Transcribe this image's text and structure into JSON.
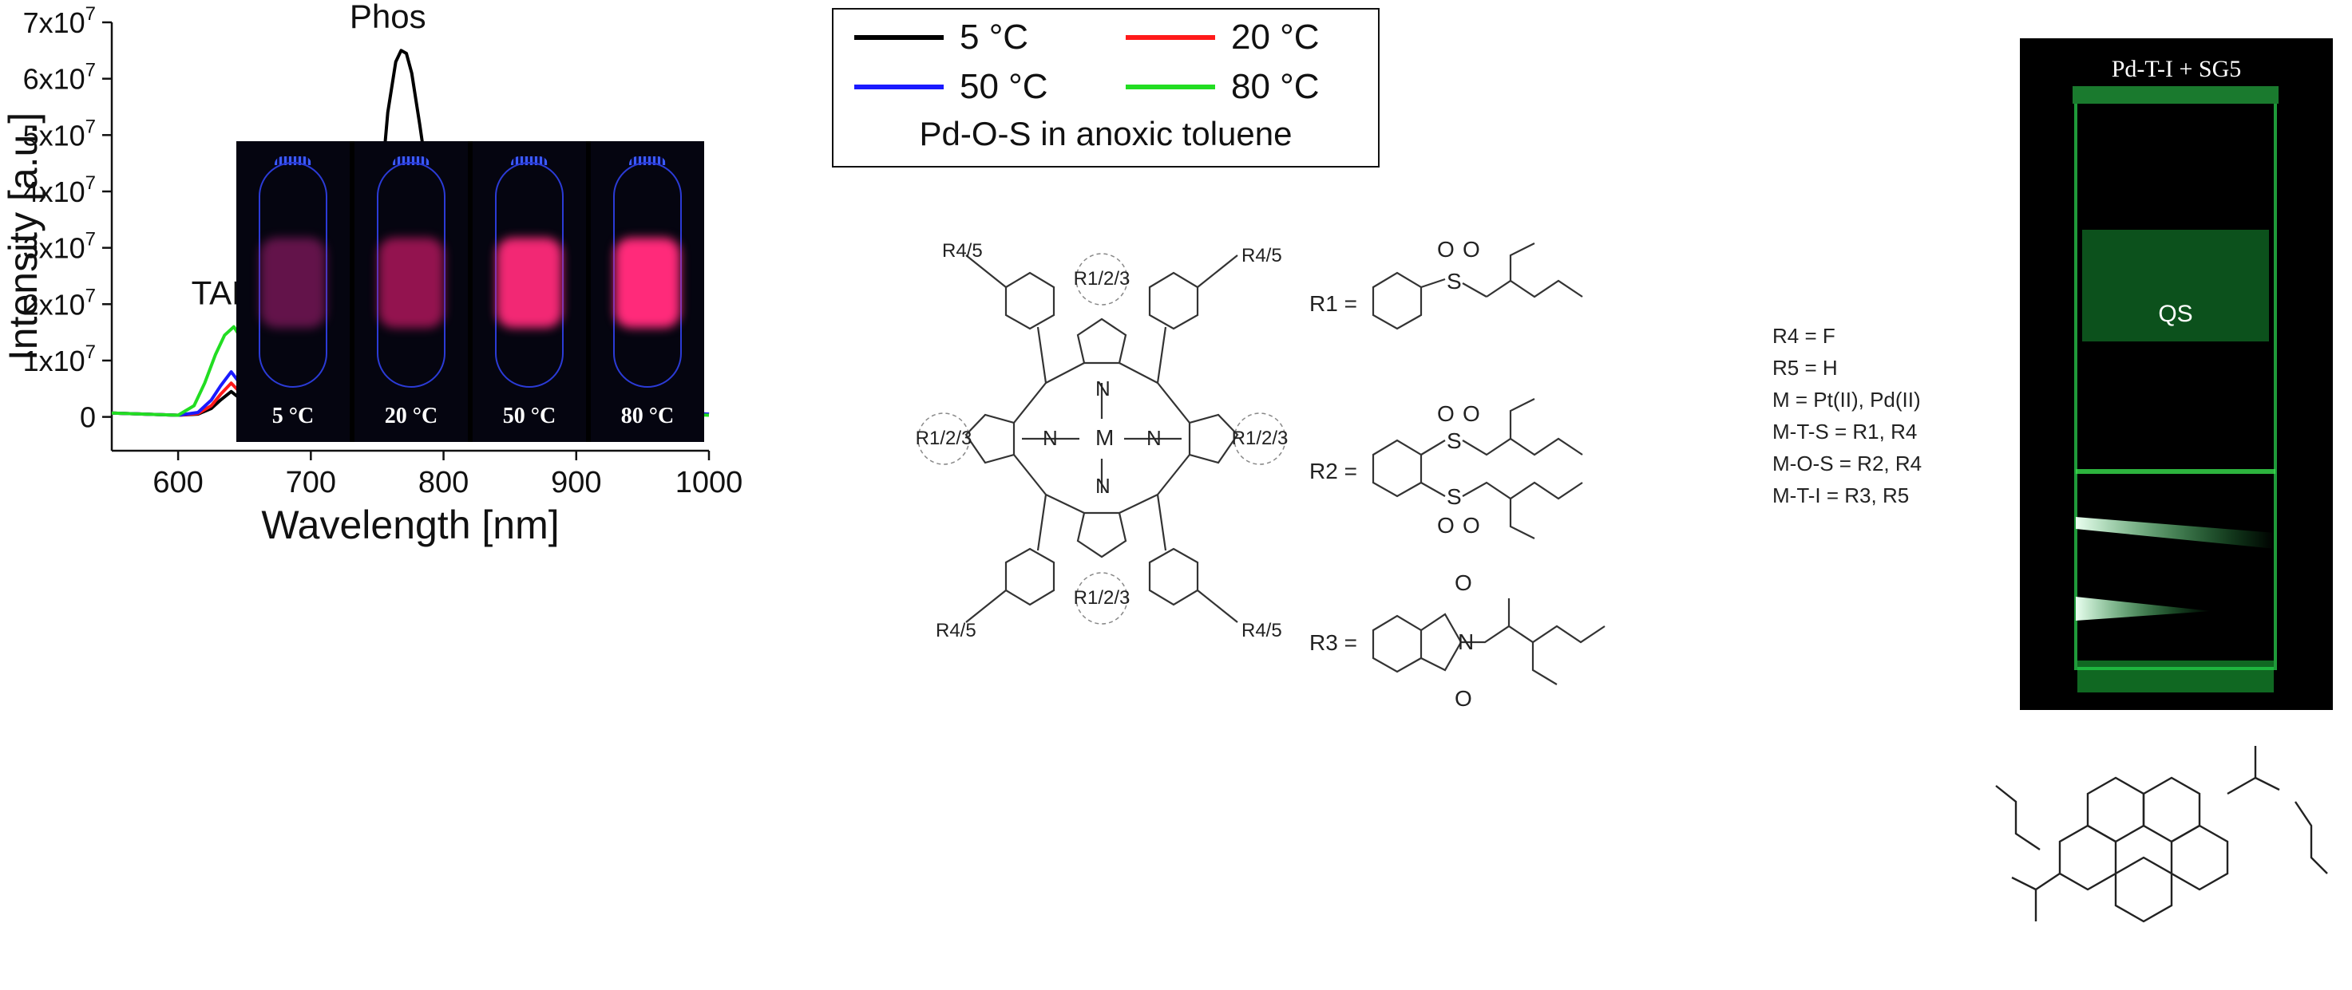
{
  "chart_data": {
    "type": "line",
    "xlabel": "Wavelength [nm]",
    "ylabel": "Intensity [a.u.]",
    "xlim": [
      550,
      1000
    ],
    "ylim": [
      -6000000.0,
      70000000.0
    ],
    "xticks": [
      600,
      700,
      800,
      900,
      1000
    ],
    "xtick_labels": [
      "600",
      "700",
      "800",
      "900",
      "1000"
    ],
    "yticks": [
      0,
      10000000.0,
      20000000.0,
      30000000.0,
      40000000.0,
      50000000.0,
      60000000.0,
      70000000.0
    ],
    "ytick_labels": [
      "0",
      "1x10",
      "2x10",
      "3x10",
      "4x10",
      "5x10",
      "6x10",
      "7x10"
    ],
    "ytick_exponent": "7",
    "grid": false,
    "legend_position": "top-center",
    "legend_note": "Pd-O-S in anoxic toluene",
    "annotations": [
      {
        "text": "TADF",
        "x": 642,
        "y": 20000000.0
      },
      {
        "text": "Phos",
        "x": 758,
        "y": 69000000.0
      }
    ],
    "gap": [
      935,
      960
    ],
    "series": [
      {
        "name": "5 °C",
        "color": "#000000",
        "x": [
          550,
          600,
          615,
          625,
          632,
          640,
          648,
          655,
          665,
          680,
          700,
          720,
          735,
          745,
          752,
          758,
          764,
          768,
          772,
          776,
          782,
          790,
          800,
          812,
          825,
          840,
          860,
          880,
          900,
          920,
          935,
          960,
          980,
          1000
        ],
        "y": [
          700000.0,
          300000.0,
          500000.0,
          1500000.0,
          3000000.0,
          4500000.0,
          3000000.0,
          1200000.0,
          400000.0,
          500000.0,
          1200000.0,
          1500000.0,
          6000000.0,
          20000000.0,
          38000000.0,
          54000000.0,
          63000000.0,
          65000000.0,
          64500000.0,
          61000000.0,
          52000000.0,
          39000000.0,
          24000000.0,
          13500000.0,
          10000000.0,
          8500000.0,
          7000000.0,
          5500000.0,
          4000000.0,
          2200000.0,
          1500000.0,
          800000.0,
          700000.0,
          500000.0
        ]
      },
      {
        "name": "20 °C",
        "color": "#ff1a1a",
        "x": [
          550,
          600,
          615,
          625,
          632,
          640,
          648,
          655,
          665,
          680,
          700,
          720,
          735,
          745,
          752,
          758,
          764,
          768,
          772,
          776,
          782,
          790,
          800,
          812,
          825,
          840,
          860,
          880,
          900,
          920,
          935,
          960,
          980,
          1000
        ],
        "y": [
          700000.0,
          300000.0,
          600000.0,
          2000000.0,
          4000000.0,
          6000000.0,
          4000000.0,
          1500000.0,
          500000.0,
          500000.0,
          1000000.0,
          1200000.0,
          4500000.0,
          14000000.0,
          27000000.0,
          38000000.0,
          44000000.0,
          45500000.0,
          45000000.0,
          42500000.0,
          36000000.0,
          26000000.0,
          16000000.0,
          10000000.0,
          7500000.0,
          6500000.0,
          5500000.0,
          4000000.0,
          3000000.0,
          2000000.0,
          1500000.0,
          800000.0,
          700000.0,
          500000.0
        ]
      },
      {
        "name": "50 °C",
        "color": "#1a1aff",
        "x": [
          550,
          600,
          615,
          625,
          632,
          640,
          648,
          655,
          665,
          680,
          700,
          720,
          735,
          745,
          752,
          758,
          764,
          768,
          772,
          776,
          782,
          790,
          800,
          812,
          825,
          840,
          860,
          880,
          900,
          920,
          935,
          960,
          980,
          1000
        ],
        "y": [
          700000.0,
          300000.0,
          800000.0,
          3000000.0,
          5500000.0,
          8000000.0,
          5500000.0,
          2000000.0,
          700000.0,
          600000.0,
          1500000.0,
          1400000.0,
          3500000.0,
          7000000.0,
          11000000.0,
          14500000.0,
          17000000.0,
          17800000.0,
          17700000.0,
          16800000.0,
          14500000.0,
          11000000.0,
          7500000.0,
          5000000.0,
          3800000.0,
          3200000.0,
          2800000.0,
          2200000.0,
          1800000.0,
          1300000.0,
          1000000.0,
          800000.0,
          700000.0,
          500000.0
        ]
      },
      {
        "name": "80 °C",
        "color": "#22dd22",
        "x": [
          550,
          600,
          612,
          620,
          628,
          635,
          642,
          650,
          658,
          668,
          680,
          690,
          700,
          708,
          715,
          725,
          735,
          745,
          752,
          758,
          764,
          768,
          772,
          776,
          782,
          790,
          800,
          812,
          825,
          840,
          860,
          880,
          900,
          920,
          935,
          960,
          980,
          1000
        ],
        "y": [
          700000.0,
          300000.0,
          2000000.0,
          6000000.0,
          11000000.0,
          14500000.0,
          16000000.0,
          13000000.0,
          7500000.0,
          3500000.0,
          2500000.0,
          2500000.0,
          3000000.0,
          3200000.0,
          2500000.0,
          1500000.0,
          2500000.0,
          5500000.0,
          8500000.0,
          11000000.0,
          12500000.0,
          13000000.0,
          13200000.0,
          12800000.0,
          11200000.0,
          9000000.0,
          6200000.0,
          4200000.0,
          3300000.0,
          2800000.0,
          2400000.0,
          2000000.0,
          1600000.0,
          1000000.0,
          800000.0,
          600000.0,
          500000.0,
          300000.0
        ]
      }
    ]
  },
  "inset": {
    "panels": [
      {
        "label": "5 °C",
        "glow": "#b0207a",
        "intensity": 0.55
      },
      {
        "label": "20 °C",
        "glow": "#d01a6a",
        "intensity": 0.7
      },
      {
        "label": "50 °C",
        "glow": "#ff2a7a",
        "intensity": 0.95
      },
      {
        "label": "80 °C",
        "glow": "#ff2a7a",
        "intensity": 1.0
      }
    ]
  },
  "legend": {
    "items": [
      {
        "label": "5 °C",
        "color": "#000000"
      },
      {
        "label": "20 °C",
        "color": "#ff1a1a"
      },
      {
        "label": "50 °C",
        "color": "#1a1aff"
      },
      {
        "label": "80 °C",
        "color": "#22dd22"
      }
    ],
    "note": "Pd-O-S in anoxic toluene"
  },
  "molecule": {
    "porphyrin_atoms": {
      "M": "M",
      "N": "N"
    },
    "substituent_r": "R1/2/3",
    "substituent_aryl": "R4/5",
    "r_labels": [
      "R1 =",
      "R2 =",
      "R3 ="
    ],
    "definitions": [
      "R4 = F",
      "R5 = H",
      "M = Pt(II), Pd(II)",
      "M-T-S = R1, R4",
      "M-O-S = R2, R4",
      "M-T-I = R3, R5"
    ],
    "atoms": {
      "S": "S",
      "O": "O",
      "N": "N"
    }
  },
  "photo": {
    "title": "Pd-T-I + SG5",
    "cuvette_label": "QS"
  }
}
